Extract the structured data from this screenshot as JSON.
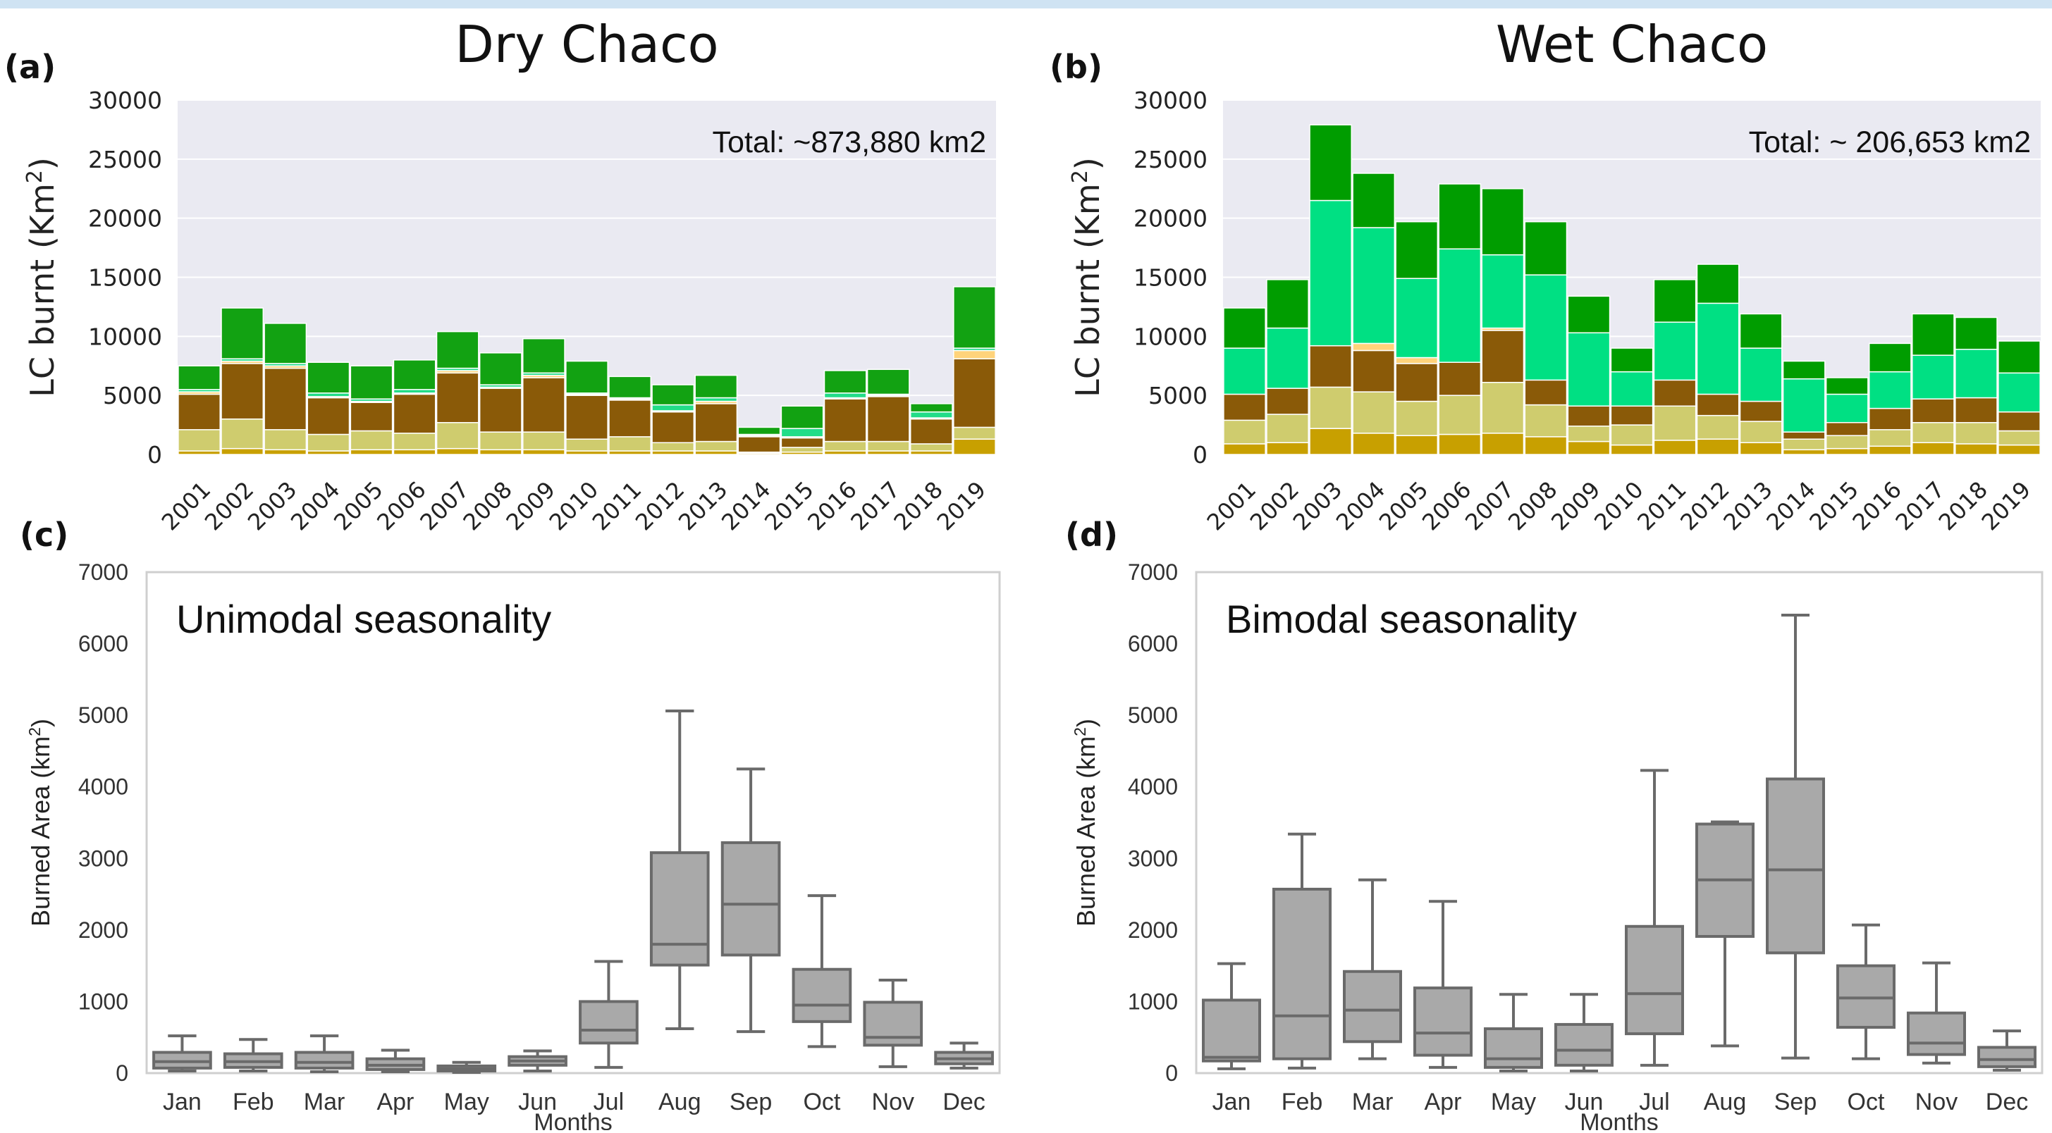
{
  "chart_data": [
    {
      "id": "a",
      "type": "bar",
      "panel_label": "(a)",
      "title": "Dry Chaco",
      "annotation": "Total: ~873,880 km2",
      "ylabel": "LC burnt (Km",
      "ylabel_sup": "2",
      "ylabel_end": ")",
      "ylim": [
        0,
        30000
      ],
      "yticks": [
        "0",
        "5000",
        "10000",
        "15000",
        "20000",
        "25000",
        "30000"
      ],
      "categories": [
        "2001",
        "2002",
        "2003",
        "2004",
        "2005",
        "2006",
        "2007",
        "2008",
        "2009",
        "2010",
        "2011",
        "2012",
        "2013",
        "2014",
        "2015",
        "2016",
        "2017",
        "2018",
        "2019"
      ],
      "colors": [
        "#c8a000",
        "#cfcc6e",
        "#8a5a08",
        "#ffd37a",
        "#22dd88",
        "#12a212"
      ],
      "stacks": [
        [
          300,
          1800,
          3000,
          200,
          200,
          2000
        ],
        [
          500,
          2500,
          4700,
          200,
          200,
          4300
        ],
        [
          400,
          1700,
          5200,
          200,
          200,
          3400
        ],
        [
          300,
          1400,
          3100,
          100,
          300,
          2600
        ],
        [
          400,
          1600,
          2400,
          100,
          200,
          2800
        ],
        [
          400,
          1400,
          3300,
          100,
          300,
          2500
        ],
        [
          500,
          2200,
          4200,
          200,
          200,
          3100
        ],
        [
          400,
          1500,
          3700,
          100,
          200,
          2700
        ],
        [
          400,
          1500,
          4600,
          200,
          200,
          2900
        ],
        [
          300,
          1000,
          3700,
          100,
          100,
          2700
        ],
        [
          300,
          1200,
          3100,
          100,
          100,
          1800
        ],
        [
          300,
          700,
          2600,
          100,
          500,
          1700
        ],
        [
          300,
          800,
          3200,
          200,
          300,
          1900
        ],
        [
          100,
          100,
          1300,
          100,
          100,
          600
        ],
        [
          200,
          400,
          800,
          100,
          700,
          1900
        ],
        [
          300,
          800,
          3600,
          100,
          400,
          1900
        ],
        [
          300,
          800,
          3800,
          100,
          100,
          2100
        ],
        [
          300,
          600,
          2100,
          100,
          500,
          700
        ],
        [
          1300,
          1000,
          5800,
          700,
          200,
          5200
        ]
      ]
    },
    {
      "id": "b",
      "type": "bar",
      "panel_label": "(b)",
      "title": "Wet Chaco",
      "annotation": "Total: ~ 206,653 km2",
      "ylabel": "LC burnt (Km",
      "ylabel_sup": "2",
      "ylabel_end": ")",
      "ylim": [
        0,
        30000
      ],
      "yticks": [
        "0",
        "5000",
        "10000",
        "15000",
        "20000",
        "25000",
        "30000"
      ],
      "categories": [
        "2001",
        "2002",
        "2003",
        "2004",
        "2005",
        "2006",
        "2007",
        "2008",
        "2009",
        "2010",
        "2011",
        "2012",
        "2013",
        "2014",
        "2015",
        "2016",
        "2017",
        "2018",
        "2019"
      ],
      "colors": [
        "#c8a000",
        "#cfcc6e",
        "#8a5a08",
        "#ffd37a",
        "#00e083",
        "#009d00"
      ],
      "stacks": [
        [
          900,
          2000,
          2200,
          0,
          3900,
          3400
        ],
        [
          1000,
          2400,
          2200,
          0,
          5100,
          4100
        ],
        [
          2200,
          3500,
          3500,
          0,
          12300,
          6400
        ],
        [
          1800,
          3500,
          3500,
          600,
          9800,
          4600
        ],
        [
          1600,
          2900,
          3200,
          500,
          6700,
          4800
        ],
        [
          1700,
          3300,
          2800,
          0,
          9600,
          5500
        ],
        [
          1800,
          4300,
          4400,
          200,
          6200,
          5600
        ],
        [
          1500,
          2700,
          2100,
          0,
          8900,
          4500
        ],
        [
          1100,
          1300,
          1700,
          0,
          6200,
          3100
        ],
        [
          800,
          1700,
          1600,
          0,
          2900,
          2000
        ],
        [
          1200,
          2900,
          2200,
          0,
          4900,
          3600
        ],
        [
          1300,
          2000,
          1800,
          0,
          7700,
          3300
        ],
        [
          1000,
          1800,
          1700,
          0,
          4500,
          2900
        ],
        [
          400,
          900,
          600,
          0,
          4500,
          1500
        ],
        [
          500,
          1100,
          1100,
          0,
          2400,
          1400
        ],
        [
          700,
          1400,
          1800,
          0,
          3100,
          2400
        ],
        [
          1000,
          1700,
          2000,
          0,
          3700,
          3500
        ],
        [
          900,
          1800,
          2100,
          0,
          4100,
          2700
        ],
        [
          800,
          1200,
          1600,
          0,
          3300,
          2700
        ]
      ]
    },
    {
      "id": "c",
      "type": "box",
      "panel_label": "(c)",
      "annotation": "Unimodal seasonality",
      "ylabel": "Burned Area (km",
      "ylabel_sup": "2",
      "ylabel_end": ")",
      "xlabel": "Months",
      "ylim": [
        0,
        7000
      ],
      "yticks": [
        "0",
        "1000",
        "2000",
        "3000",
        "4000",
        "5000",
        "6000",
        "7000"
      ],
      "categories": [
        "Jan",
        "Feb",
        "Mar",
        "Apr",
        "May",
        "Jun",
        "Jul",
        "Aug",
        "Sep",
        "Oct",
        "Nov",
        "Dec"
      ],
      "boxes": [
        [
          30,
          70,
          160,
          290,
          520
        ],
        [
          30,
          80,
          160,
          270,
          470
        ],
        [
          20,
          70,
          150,
          290,
          520
        ],
        [
          20,
          50,
          110,
          200,
          320
        ],
        [
          10,
          30,
          60,
          100,
          150
        ],
        [
          30,
          110,
          170,
          230,
          310
        ],
        [
          80,
          420,
          600,
          1000,
          1560
        ],
        [
          620,
          1510,
          1800,
          3080,
          5060
        ],
        [
          580,
          1650,
          2360,
          3220,
          4250
        ],
        [
          370,
          720,
          950,
          1450,
          2480
        ],
        [
          90,
          390,
          500,
          990,
          1300
        ],
        [
          70,
          130,
          200,
          290,
          420
        ]
      ]
    },
    {
      "id": "d",
      "type": "box",
      "panel_label": "(d)",
      "annotation": "Bimodal seasonality",
      "ylabel": "Burned Area (km",
      "ylabel_sup": "2",
      "ylabel_end": ")",
      "xlabel": "Months",
      "ylim": [
        0,
        7000
      ],
      "yticks": [
        "0",
        "1000",
        "2000",
        "3000",
        "4000",
        "5000",
        "6000",
        "7000"
      ],
      "categories": [
        "Jan",
        "Feb",
        "Mar",
        "Apr",
        "May",
        "Jun",
        "Jul",
        "Aug",
        "Sep",
        "Oct",
        "Nov",
        "Dec"
      ],
      "boxes": [
        [
          60,
          170,
          220,
          1020,
          1530
        ],
        [
          70,
          200,
          800,
          2570,
          3340
        ],
        [
          200,
          440,
          880,
          1420,
          2700
        ],
        [
          80,
          250,
          560,
          1190,
          2400
        ],
        [
          30,
          80,
          200,
          620,
          1100
        ],
        [
          30,
          110,
          320,
          680,
          1100
        ],
        [
          110,
          550,
          1110,
          2050,
          4230
        ],
        [
          380,
          1910,
          2700,
          3480,
          3510
        ],
        [
          210,
          1680,
          2840,
          4110,
          6400
        ],
        [
          200,
          640,
          1050,
          1500,
          2070
        ],
        [
          140,
          260,
          420,
          840,
          1540
        ],
        [
          40,
          90,
          190,
          360,
          590
        ]
      ]
    }
  ]
}
